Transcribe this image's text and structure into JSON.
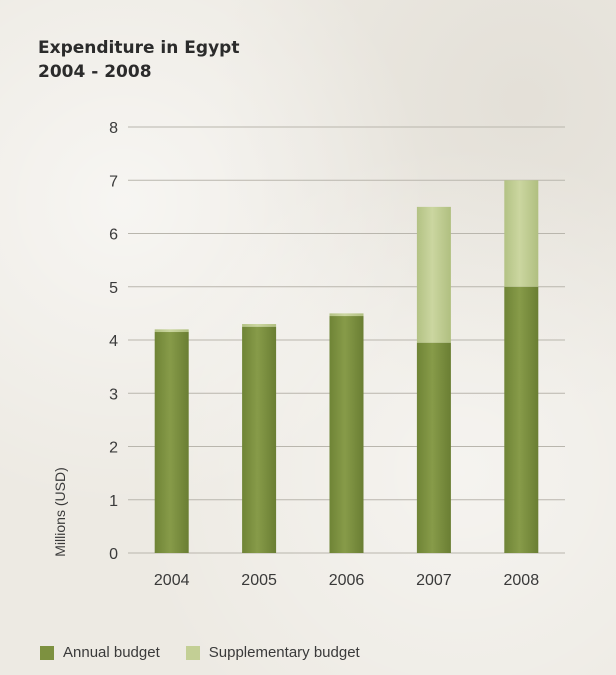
{
  "colors": {
    "annual": "#7d9140",
    "supplementary": "#c3cf95",
    "grid": "#b9b6ad",
    "text": "#3a3a3a"
  },
  "chart_data": {
    "type": "bar",
    "stacked": true,
    "title": "Expenditure in Egypt",
    "subtitle": "2004 - 2008",
    "ylabel": "Millions (USD)",
    "xlabel": "",
    "ylim": [
      0,
      8
    ],
    "yticks": [
      0,
      1,
      2,
      3,
      4,
      5,
      6,
      7,
      8
    ],
    "grid": true,
    "legend_position": "bottom-left",
    "categories": [
      "2004",
      "2005",
      "2006",
      "2007",
      "2008"
    ],
    "series": [
      {
        "name": "Annual budget",
        "color": "#7d9140",
        "values": [
          4.15,
          4.25,
          4.45,
          3.95,
          5.0
        ]
      },
      {
        "name": "Supplementary budget",
        "color": "#c3cf95",
        "values": [
          0.05,
          0.05,
          0.05,
          2.55,
          2.0
        ]
      }
    ]
  }
}
